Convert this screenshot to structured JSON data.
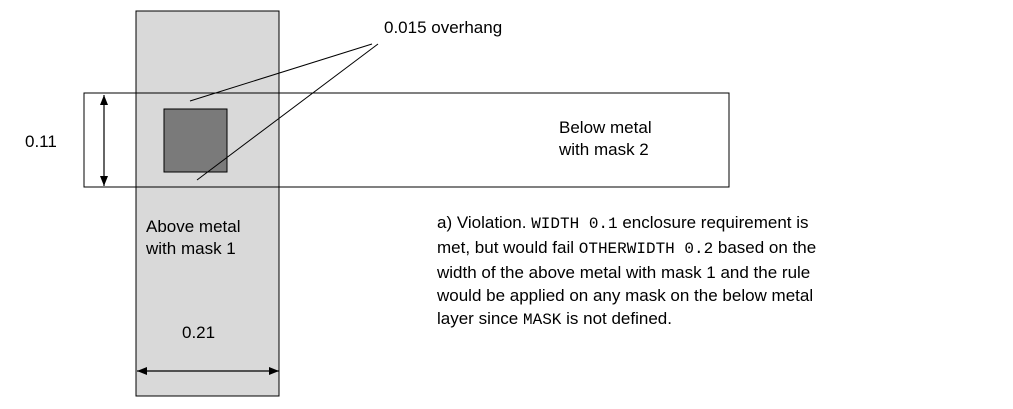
{
  "labels": {
    "overhang": "0.015 overhang",
    "height": "0.11",
    "width": "0.21",
    "below_metal": [
      "Below metal",
      "with mask 2"
    ],
    "above_metal": [
      "Above metal",
      "with mask 1"
    ]
  },
  "caption": {
    "lines": [
      [
        {
          "t": "a) Violation. ",
          "mono": false
        },
        {
          "t": "WIDTH 0.1",
          "mono": true
        },
        {
          "t": " enclosure requirement is",
          "mono": false
        }
      ],
      [
        {
          "t": "met, but would fail ",
          "mono": false
        },
        {
          "t": "OTHERWIDTH 0.2",
          "mono": true
        },
        {
          "t": " based on the",
          "mono": false
        }
      ],
      [
        {
          "t": "width of the above metal with mask 1 and the rule",
          "mono": false
        }
      ],
      [
        {
          "t": "would be applied on any mask on the below metal",
          "mono": false
        }
      ],
      [
        {
          "t": "layer since ",
          "mono": false
        },
        {
          "t": "MASK",
          "mono": true
        },
        {
          "t": " is not defined.",
          "mono": false
        }
      ]
    ]
  },
  "colors": {
    "above_metal_fill": "#d9d9d9",
    "via_fill": "#7a7a7a",
    "stroke": "#000000"
  }
}
